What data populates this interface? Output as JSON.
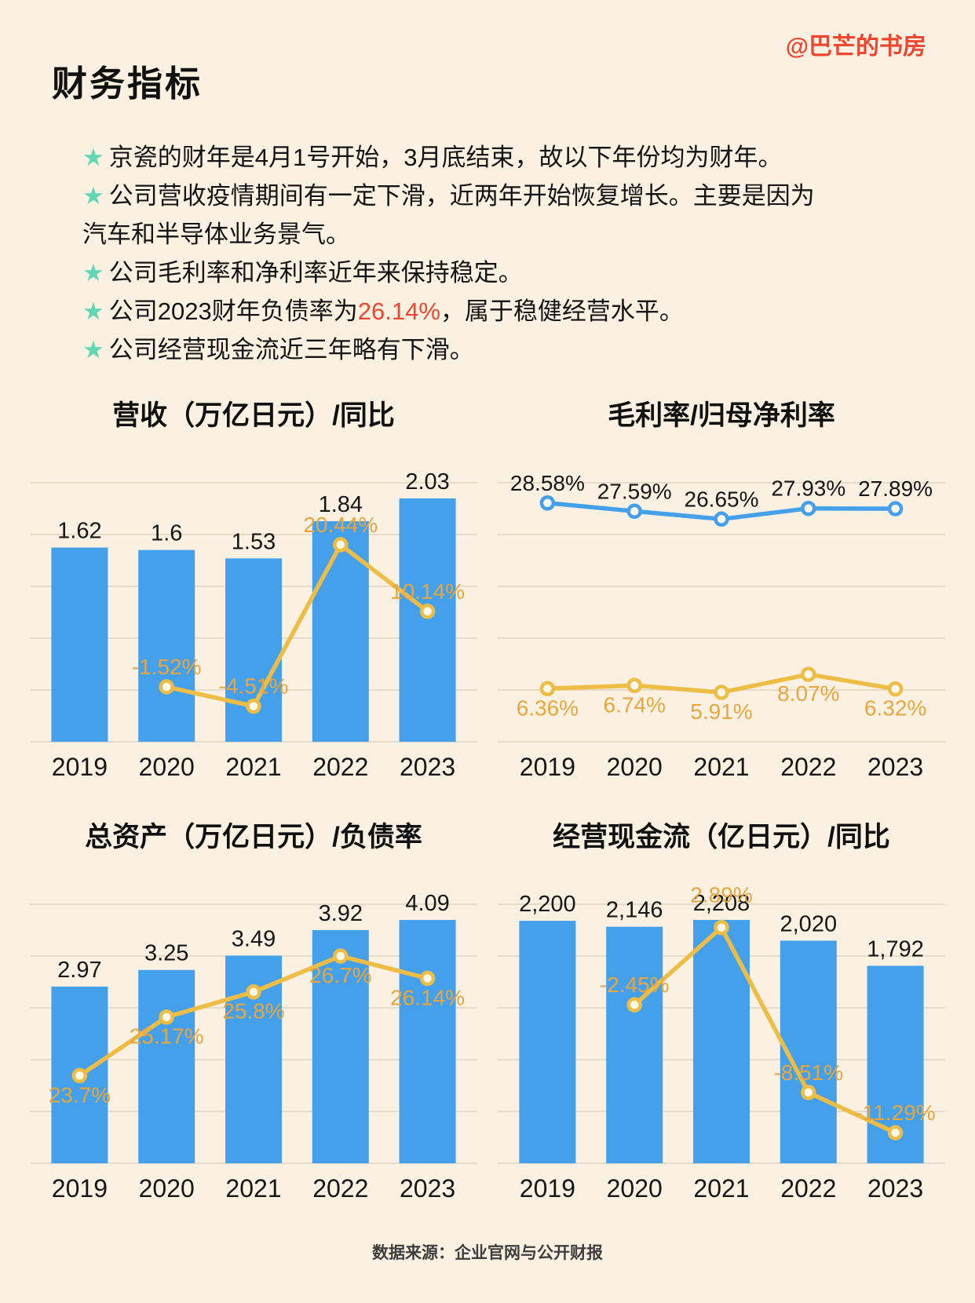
{
  "page": {
    "handle": "@巴芒的书房",
    "title": "财务指标",
    "star": "★",
    "source_note": "数据来源：企业官网与公开财报"
  },
  "bullets": [
    {
      "pre": "京瓷的财年是4月1号开始，3月底结束，故以下年份均为财年。"
    },
    {
      "pre": "公司营收疫情期间有一定下滑，近两年开始恢复增长。主要是因为汽车和半导体业务景气。"
    },
    {
      "pre": "公司毛利率和净利率近年来保持稳定。"
    },
    {
      "pre": "公司2023财年负债率为",
      "highlight": "26.14%",
      "post": "，属于稳健经营水平。"
    },
    {
      "pre": "公司经营现金流近三年略有下滑。"
    }
  ],
  "colors": {
    "background": "#fbf1e2",
    "accent_red": "#f0452e",
    "star_teal": "#63d7b4",
    "bar_blue": "#45a0ec",
    "line_yellow": "#eebd45",
    "line_label_orange": "#e9a63e",
    "grid": "#ded4c0",
    "text": "#161616"
  },
  "chart_data": [
    {
      "type": "bar",
      "title": "营收（万亿日元）/同比",
      "categories": [
        "2019",
        "2020",
        "2021",
        "2022",
        "2023"
      ],
      "grid": true,
      "legend_position": "none",
      "series": [
        {
          "name": "营收",
          "kind": "bar",
          "unit": "万亿日元",
          "values": [
            1.62,
            1.6,
            1.53,
            1.84,
            2.03
          ],
          "labels": [
            "1.62",
            "1.6",
            "1.53",
            "1.84",
            "2.03"
          ]
        },
        {
          "name": "同比",
          "kind": "line",
          "unit": "%",
          "values": [
            null,
            -1.52,
            -4.51,
            20.44,
            10.14
          ],
          "labels": [
            null,
            "-1.52%",
            "-4.51%",
            "20.44%",
            "10.14%"
          ]
        }
      ]
    },
    {
      "type": "line",
      "title": "毛利率/归母净利率",
      "categories": [
        "2019",
        "2020",
        "2021",
        "2022",
        "2023"
      ],
      "grid": true,
      "legend_position": "none",
      "series": [
        {
          "name": "毛利率",
          "kind": "line",
          "unit": "%",
          "values": [
            28.58,
            27.59,
            26.65,
            27.93,
            27.89
          ],
          "labels": [
            "28.58%",
            "27.59%",
            "26.65%",
            "27.93%",
            "27.89%"
          ]
        },
        {
          "name": "归母净利率",
          "kind": "line",
          "unit": "%",
          "values": [
            6.36,
            6.74,
            5.91,
            8.07,
            6.32
          ],
          "labels": [
            "6.36%",
            "6.74%",
            "5.91%",
            "8.07%",
            "6.32%"
          ]
        }
      ]
    },
    {
      "type": "bar",
      "title": "总资产（万亿日元）/负债率",
      "categories": [
        "2019",
        "2020",
        "2021",
        "2022",
        "2023"
      ],
      "grid": true,
      "legend_position": "none",
      "series": [
        {
          "name": "总资产",
          "kind": "bar",
          "unit": "万亿日元",
          "values": [
            2.97,
            3.25,
            3.49,
            3.92,
            4.09
          ],
          "labels": [
            "2.97",
            "3.25",
            "3.49",
            "3.92",
            "4.09"
          ]
        },
        {
          "name": "负债率",
          "kind": "line",
          "unit": "%",
          "values": [
            23.7,
            25.17,
            25.8,
            26.7,
            26.14
          ],
          "labels": [
            "23.7%",
            "25.17%",
            "25.8%",
            "26.7%",
            "26.14%"
          ]
        }
      ]
    },
    {
      "type": "bar",
      "title": "经营现金流（亿日元）/同比",
      "categories": [
        "2019",
        "2020",
        "2021",
        "2022",
        "2023"
      ],
      "grid": true,
      "legend_position": "none",
      "series": [
        {
          "name": "经营现金流",
          "kind": "bar",
          "unit": "亿日元",
          "values": [
            2200,
            2146,
            2208,
            2020,
            1792
          ],
          "labels": [
            "2,200",
            "2,146",
            "2,208",
            "2,020",
            "1,792"
          ]
        },
        {
          "name": "同比",
          "kind": "line",
          "unit": "%",
          "values": [
            null,
            -2.45,
            2.89,
            -8.51,
            -11.29
          ],
          "labels": [
            null,
            "-2.45%",
            "2.89%",
            "-8.51%",
            "-11.29%"
          ]
        }
      ]
    }
  ]
}
